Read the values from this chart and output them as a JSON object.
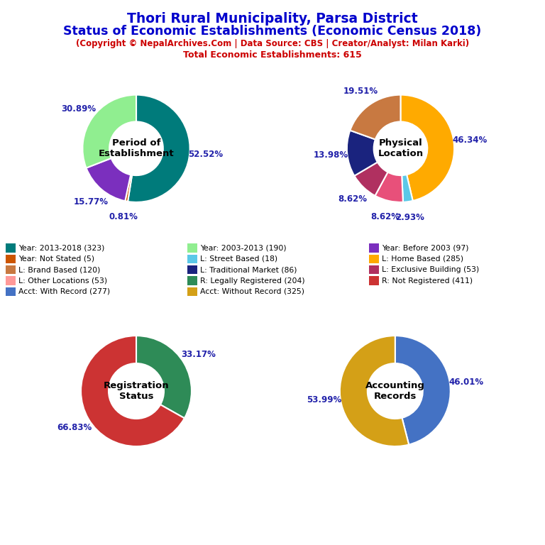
{
  "title_line1": "Thori Rural Municipality, Parsa District",
  "title_line2": "Status of Economic Establishments (Economic Census 2018)",
  "subtitle": "(Copyright © NepalArchives.Com | Data Source: CBS | Creator/Analyst: Milan Karki)",
  "subtitle2": "Total Economic Establishments: 615",
  "title_color": "#0000cc",
  "subtitle_color": "#cc0000",
  "donuts": [
    {
      "label": "Period of\nEstablishment",
      "values": [
        52.52,
        0.81,
        15.77,
        30.89
      ],
      "colors": [
        "#007b7b",
        "#cc5500",
        "#7b2fbe",
        "#90ee90"
      ],
      "pct_labels": [
        "52.52%",
        "0.81%",
        "15.77%",
        "30.89%"
      ],
      "startangle": 90,
      "counterclock": false
    },
    {
      "label": "Physical\nLocation",
      "values": [
        46.34,
        2.93,
        8.62,
        8.62,
        13.98,
        19.51
      ],
      "colors": [
        "#ffaa00",
        "#5bc8e8",
        "#e8507a",
        "#b03060",
        "#1a237e",
        "#c87941"
      ],
      "pct_labels": [
        "46.34%",
        "2.93%",
        "8.62%",
        "8.62%",
        "13.98%",
        "19.51%"
      ],
      "startangle": 90,
      "counterclock": false
    },
    {
      "label": "Registration\nStatus",
      "values": [
        33.17,
        66.83
      ],
      "colors": [
        "#2e8b57",
        "#cc3333"
      ],
      "pct_labels": [
        "33.17%",
        "66.83%"
      ],
      "startangle": 90,
      "counterclock": false
    },
    {
      "label": "Accounting\nRecords",
      "values": [
        46.01,
        53.99
      ],
      "colors": [
        "#4472c4",
        "#d4a017"
      ],
      "pct_labels": [
        "46.01%",
        "53.99%"
      ],
      "startangle": 90,
      "counterclock": false
    }
  ],
  "legend_items": [
    {
      "label": "Year: 2013-2018 (323)",
      "color": "#007b7b"
    },
    {
      "label": "Year: 2003-2013 (190)",
      "color": "#90ee90"
    },
    {
      "label": "Year: Before 2003 (97)",
      "color": "#7b2fbe"
    },
    {
      "label": "Year: Not Stated (5)",
      "color": "#cc5500"
    },
    {
      "label": "L: Street Based (18)",
      "color": "#5bc8e8"
    },
    {
      "label": "L: Home Based (285)",
      "color": "#ffaa00"
    },
    {
      "label": "L: Brand Based (120)",
      "color": "#c87941"
    },
    {
      "label": "L: Traditional Market (86)",
      "color": "#1a237e"
    },
    {
      "label": "L: Exclusive Building (53)",
      "color": "#b03060"
    },
    {
      "label": "L: Other Locations (53)",
      "color": "#ff9999"
    },
    {
      "label": "R: Legally Registered (204)",
      "color": "#2e8b57"
    },
    {
      "label": "R: Not Registered (411)",
      "color": "#cc3333"
    },
    {
      "label": "Acct: With Record (277)",
      "color": "#4472c4"
    },
    {
      "label": "Acct: Without Record (325)",
      "color": "#d4a017"
    }
  ],
  "legend_layout": {
    "n_cols": 3,
    "col_assignments": [
      0,
      0,
      0,
      0,
      0,
      1,
      1,
      1,
      1,
      0,
      1,
      2,
      2,
      1
    ]
  }
}
